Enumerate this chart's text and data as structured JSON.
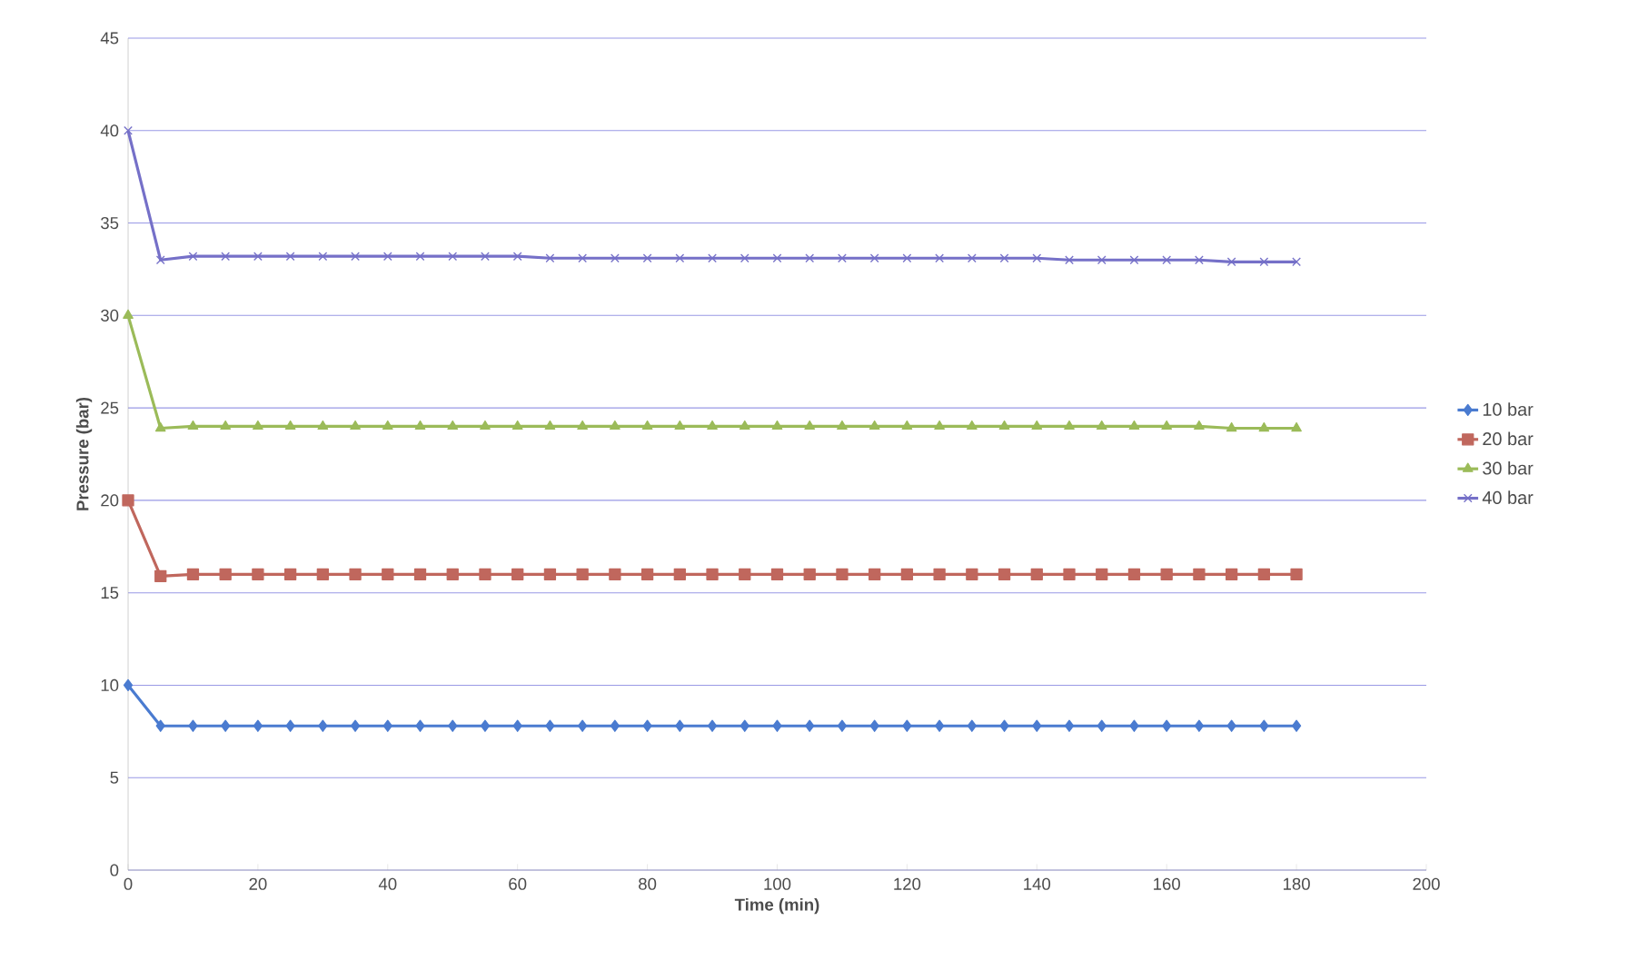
{
  "chart_data": {
    "type": "line",
    "xlabel": "Time (min)",
    "ylabel": "Pressure (bar)",
    "x": [
      0,
      5,
      10,
      15,
      20,
      25,
      30,
      35,
      40,
      45,
      50,
      55,
      60,
      65,
      70,
      75,
      80,
      85,
      90,
      95,
      100,
      105,
      110,
      115,
      120,
      125,
      130,
      135,
      140,
      145,
      150,
      155,
      160,
      165,
      170,
      175,
      180
    ],
    "series": [
      {
        "name": "10 bar",
        "color": "#4a7bd0",
        "marker": "diamond",
        "values": [
          10,
          7.8,
          7.8,
          7.8,
          7.8,
          7.8,
          7.8,
          7.8,
          7.8,
          7.8,
          7.8,
          7.8,
          7.8,
          7.8,
          7.8,
          7.8,
          7.8,
          7.8,
          7.8,
          7.8,
          7.8,
          7.8,
          7.8,
          7.8,
          7.8,
          7.8,
          7.8,
          7.8,
          7.8,
          7.8,
          7.8,
          7.8,
          7.8,
          7.8,
          7.8,
          7.8,
          7.8
        ]
      },
      {
        "name": "20 bar",
        "color": "#c0675d",
        "marker": "square",
        "values": [
          20,
          15.9,
          16.0,
          16.0,
          16.0,
          16.0,
          16.0,
          16.0,
          16.0,
          16.0,
          16.0,
          16.0,
          16.0,
          16.0,
          16.0,
          16.0,
          16.0,
          16.0,
          16.0,
          16.0,
          16.0,
          16.0,
          16.0,
          16.0,
          16.0,
          16.0,
          16.0,
          16.0,
          16.0,
          16.0,
          16.0,
          16.0,
          16.0,
          16.0,
          16.0,
          16.0,
          16.0
        ]
      },
      {
        "name": "30 bar",
        "color": "#9bbb59",
        "marker": "triangle",
        "values": [
          30,
          23.9,
          24.0,
          24.0,
          24.0,
          24.0,
          24.0,
          24.0,
          24.0,
          24.0,
          24.0,
          24.0,
          24.0,
          24.0,
          24.0,
          24.0,
          24.0,
          24.0,
          24.0,
          24.0,
          24.0,
          24.0,
          24.0,
          24.0,
          24.0,
          24.0,
          24.0,
          24.0,
          24.0,
          24.0,
          24.0,
          24.0,
          24.0,
          24.0,
          23.9,
          23.9,
          23.9
        ]
      },
      {
        "name": "40 bar",
        "color": "#7570c8",
        "marker": "cross",
        "values": [
          40,
          33.0,
          33.2,
          33.2,
          33.2,
          33.2,
          33.2,
          33.2,
          33.2,
          33.2,
          33.2,
          33.2,
          33.2,
          33.1,
          33.1,
          33.1,
          33.1,
          33.1,
          33.1,
          33.1,
          33.1,
          33.1,
          33.1,
          33.1,
          33.1,
          33.1,
          33.1,
          33.1,
          33.1,
          33.0,
          33.0,
          33.0,
          33.0,
          33.0,
          32.9,
          32.9,
          32.9
        ]
      }
    ],
    "xlim": [
      0,
      200
    ],
    "xticks": [
      0,
      20,
      40,
      60,
      80,
      100,
      120,
      140,
      160,
      180,
      200
    ],
    "ylim": [
      0,
      45
    ],
    "yticks": [
      0,
      5,
      10,
      15,
      20,
      25,
      30,
      35,
      40,
      45
    ],
    "grid": "y",
    "legend": "right",
    "line_style": "solid"
  }
}
